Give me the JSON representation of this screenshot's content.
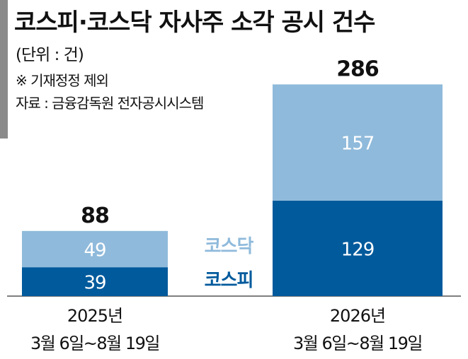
{
  "header": {
    "title": "코스피·코스닥 자사주 소각 공시 건수",
    "unit": "(단위 : 건)",
    "note": "※ 기재정정 제외",
    "source": "자료 : 금융감독원 전자공시시스템"
  },
  "colors": {
    "kospi": "#015a9c",
    "kosdaq": "#8fbadb",
    "axis": "#555555",
    "accent": "#8a8a8a"
  },
  "chart_data": {
    "type": "bar",
    "stacked": true,
    "categories": [
      [
        "2025년",
        "3월 6일~8월 19일"
      ],
      [
        "2026년",
        "3월 6일~8월 19일"
      ]
    ],
    "series": [
      {
        "name": "코스피",
        "values": [
          39,
          129
        ]
      },
      {
        "name": "코스닥",
        "values": [
          49,
          157
        ]
      }
    ],
    "totals": [
      88,
      286
    ],
    "ylim": [
      0,
      295
    ],
    "legend": "between-bars",
    "grid": false
  }
}
